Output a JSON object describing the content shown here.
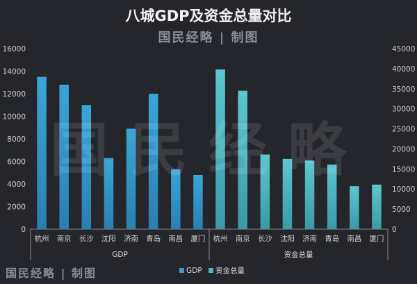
{
  "chart_data": {
    "type": "bar",
    "title": "八城GDP及资金总量对比",
    "subtitle": "国民经略 | 制图",
    "watermark": "国民经略",
    "footer_brand": "国民经略 | 制图",
    "y_left": {
      "ticks": [
        "0",
        "2000",
        "4000",
        "6000",
        "8000",
        "10000",
        "12000",
        "14000",
        "16000"
      ],
      "ylim": [
        0,
        16000
      ]
    },
    "y_right": {
      "ticks": [
        "0",
        "5000",
        "10000",
        "15000",
        "20000",
        "25000",
        "30000",
        "35000",
        "40000",
        "45000"
      ],
      "ylim": [
        0,
        45000
      ]
    },
    "groups": [
      {
        "name": "GDP",
        "axis": "left",
        "color": "#3a9bc9",
        "categories": [
          "杭州",
          "南京",
          "长沙",
          "沈阳",
          "济南",
          "青岛",
          "南昌",
          "厦门"
        ],
        "values": [
          13500,
          12800,
          11000,
          6300,
          8900,
          12000,
          5300,
          4800
        ]
      },
      {
        "name": "资金总量",
        "axis": "right",
        "color": "#4fb8c4",
        "categories": [
          "杭州",
          "南京",
          "长沙",
          "沈阳",
          "济南",
          "青岛",
          "南昌",
          "厦门"
        ],
        "values": [
          39800,
          34500,
          18600,
          17500,
          17100,
          16100,
          10700,
          11100
        ]
      }
    ],
    "legend": {
      "position": "bottom",
      "items": [
        {
          "label": "GDP",
          "color": "#3a9bc9"
        },
        {
          "label": "资金总量",
          "color": "#4fb8c4"
        }
      ]
    },
    "grid": false
  }
}
